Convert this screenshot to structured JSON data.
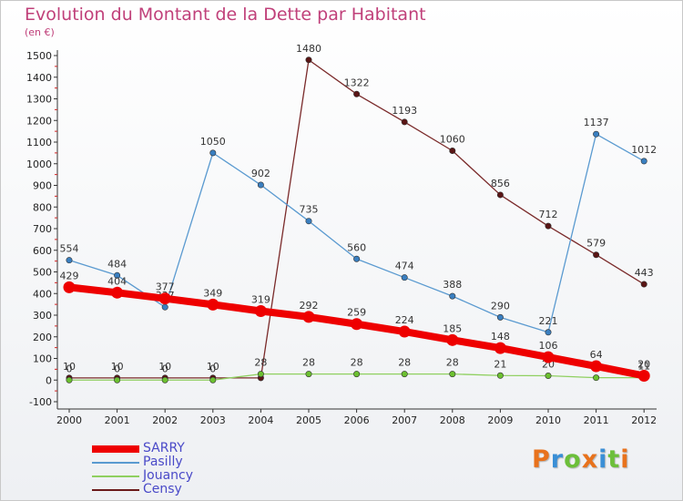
{
  "header": {
    "title": "Evolution du Montant de la Dette par Habitant",
    "subtitle": "(en €)"
  },
  "brand": {
    "letters": [
      "P",
      "r",
      "o",
      "x",
      "i",
      "t",
      "i"
    ],
    "colors": [
      "#e8721c",
      "#3a8fd6",
      "#6cbf3a",
      "#e8721c",
      "#3a8fd6",
      "#6cbf3a",
      "#e8721c"
    ]
  },
  "chart_data": {
    "type": "line",
    "title": "Evolution du Montant de la Dette par Habitant",
    "subtitle": "(en €)",
    "xlabel": "",
    "ylabel": "",
    "categories": [
      "2000",
      "2001",
      "2002",
      "2003",
      "2004",
      "2005",
      "2006",
      "2007",
      "2008",
      "2009",
      "2010",
      "2011",
      "2012"
    ],
    "ylim": [
      -100,
      1500
    ],
    "yticks": [
      -100,
      0,
      100,
      200,
      300,
      400,
      500,
      600,
      700,
      800,
      900,
      1000,
      1100,
      1200,
      1300,
      1400,
      1500
    ],
    "grid": false,
    "legend_position": "bottom-left",
    "series": [
      {
        "name": "Censy",
        "color": "#6b1a1a",
        "values": [
          10,
          10,
          10,
          10,
          10,
          1480,
          1322,
          1193,
          1060,
          856,
          712,
          579,
          443
        ],
        "labels": [
          "10",
          "10",
          "10",
          "10",
          "",
          "1480",
          "1322",
          "1193",
          "1060",
          "856",
          "712",
          "579",
          "443"
        ]
      },
      {
        "name": "Pasilly",
        "color": "#5a9ad0",
        "values": [
          554,
          484,
          337,
          1050,
          902,
          735,
          560,
          474,
          388,
          290,
          221,
          1137,
          1012
        ],
        "labels": [
          "554",
          "484",
          "337",
          "1050",
          "902",
          "735",
          "560",
          "474",
          "388",
          "290",
          "221",
          "1137",
          "1012"
        ]
      },
      {
        "name": "Jouancy",
        "color": "#8fd060",
        "values": [
          0,
          0,
          0,
          0,
          28,
          28,
          28,
          28,
          28,
          21,
          20,
          11,
          11
        ],
        "labels": [
          "0",
          "0",
          "0",
          "0",
          "28",
          "28",
          "28",
          "28",
          "28",
          "21",
          "20",
          "",
          "11"
        ]
      },
      {
        "name": "SARRY",
        "color": "#ee0000",
        "values": [
          429,
          404,
          377,
          349,
          319,
          292,
          259,
          224,
          185,
          148,
          106,
          64,
          20
        ],
        "labels": [
          "429",
          "404",
          "377",
          "349",
          "319",
          "292",
          "259",
          "224",
          "185",
          "148",
          "106",
          "64",
          "20"
        ]
      }
    ],
    "legend_order": [
      "SARRY",
      "Pasilly",
      "Jouancy",
      "Censy"
    ]
  }
}
